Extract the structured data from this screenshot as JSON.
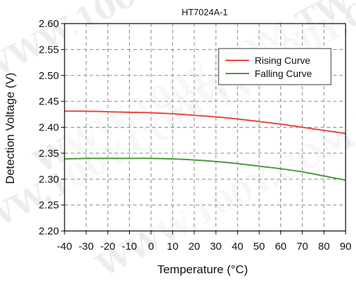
{
  "chart_data": {
    "type": "line",
    "title": "HT7024A-1",
    "xlabel": "Temperature (°C)",
    "ylabel": "Detection Voltage (V)",
    "xlim": [
      -40,
      90
    ],
    "ylim": [
      2.2,
      2.6
    ],
    "x_ticks": [
      "-40",
      "-30",
      "-20",
      "-10",
      "0",
      "10",
      "20",
      "30",
      "40",
      "50",
      "60",
      "70",
      "80",
      "90"
    ],
    "y_ticks": [
      "2.20",
      "2.25",
      "2.30",
      "2.35",
      "2.40",
      "2.45",
      "2.50",
      "2.55",
      "2.60"
    ],
    "grid": true,
    "legend_position": "top-right",
    "x": [
      -40,
      -30,
      -20,
      -10,
      0,
      10,
      20,
      30,
      40,
      50,
      60,
      70,
      80,
      90
    ],
    "series": [
      {
        "name": "Rising Curve",
        "color": "#e8473b",
        "values": [
          2.431,
          2.431,
          2.43,
          2.429,
          2.428,
          2.426,
          2.423,
          2.42,
          2.416,
          2.411,
          2.406,
          2.4,
          2.394,
          2.388
        ]
      },
      {
        "name": "Falling Curve",
        "color": "#4a9a3a",
        "values": [
          2.339,
          2.34,
          2.34,
          2.34,
          2.34,
          2.339,
          2.337,
          2.334,
          2.33,
          2.325,
          2.32,
          2.314,
          2.306,
          2.298
        ]
      }
    ]
  },
  "watermark": {
    "text": "WWW.100Y.COM.TW"
  }
}
